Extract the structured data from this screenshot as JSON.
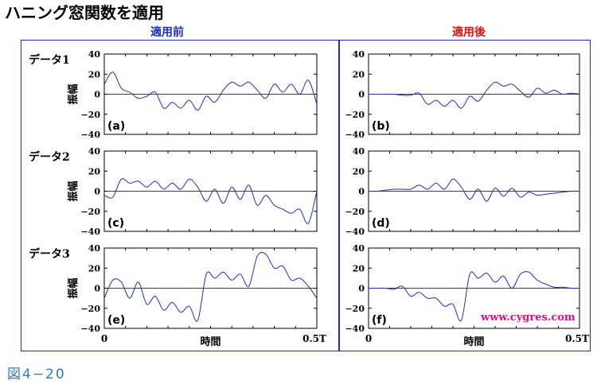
{
  "title": "ハニング窓関数を適用",
  "column_headers": {
    "before": "適用前",
    "after": "適用後"
  },
  "colors": {
    "frame": "#1f2fb5",
    "before_header": "#1f2fb5",
    "after_header": "#e01010",
    "line": "#2030b0",
    "caption": "#3a78b8",
    "watermark": "#e0117f"
  },
  "row_labels": [
    "データ1",
    "データ2",
    "データ3"
  ],
  "ylabel": "振幅",
  "xlabel": "時間",
  "x_ticks": [
    "0",
    "0.5T"
  ],
  "watermark": "www.cygres.com",
  "figure_caption": "図4−20",
  "chart_data": [
    {
      "panel": "(a)",
      "type": "line",
      "ylim": [
        -40,
        40
      ],
      "yticks": [
        -40,
        -20,
        0,
        20,
        40
      ],
      "xlim": [
        0,
        0.5
      ],
      "x": [
        0,
        0.02,
        0.04,
        0.06,
        0.08,
        0.1,
        0.12,
        0.14,
        0.16,
        0.18,
        0.2,
        0.22,
        0.24,
        0.26,
        0.28,
        0.3,
        0.32,
        0.34,
        0.36,
        0.38,
        0.4,
        0.42,
        0.44,
        0.46,
        0.48,
        0.5
      ],
      "values": [
        10,
        22,
        6,
        2,
        -4,
        -2,
        2,
        -14,
        -8,
        -14,
        -6,
        -16,
        -2,
        -8,
        4,
        12,
        8,
        12,
        4,
        -4,
        10,
        2,
        10,
        0,
        14,
        -10
      ]
    },
    {
      "panel": "(b)",
      "type": "line",
      "ylim": [
        -40,
        40
      ],
      "yticks": [
        -40,
        -20,
        0,
        20,
        40
      ],
      "xlim": [
        0,
        0.5
      ],
      "x": [
        0,
        0.02,
        0.04,
        0.06,
        0.08,
        0.1,
        0.12,
        0.14,
        0.16,
        0.18,
        0.2,
        0.22,
        0.24,
        0.26,
        0.28,
        0.3,
        0.32,
        0.34,
        0.36,
        0.38,
        0.4,
        0.42,
        0.44,
        0.46,
        0.48,
        0.5
      ],
      "values": [
        0,
        0,
        0,
        0,
        -1,
        -1,
        1,
        -10,
        -6,
        -12,
        -6,
        -14,
        -2,
        -7,
        4,
        12,
        8,
        10,
        3,
        -3,
        6,
        1,
        4,
        0,
        1,
        0
      ]
    },
    {
      "panel": "(c)",
      "type": "line",
      "ylim": [
        -40,
        40
      ],
      "yticks": [
        -40,
        -20,
        0,
        20,
        40
      ],
      "xlim": [
        0,
        0.5
      ],
      "x": [
        0,
        0.02,
        0.04,
        0.06,
        0.08,
        0.1,
        0.12,
        0.14,
        0.16,
        0.18,
        0.2,
        0.22,
        0.24,
        0.26,
        0.28,
        0.3,
        0.32,
        0.34,
        0.36,
        0.38,
        0.4,
        0.42,
        0.44,
        0.46,
        0.48,
        0.5
      ],
      "values": [
        -4,
        -6,
        12,
        8,
        10,
        4,
        10,
        2,
        8,
        2,
        12,
        4,
        -10,
        2,
        -12,
        4,
        -8,
        6,
        -14,
        -4,
        -14,
        -18,
        -22,
        -18,
        -32,
        0
      ]
    },
    {
      "panel": "(d)",
      "type": "line",
      "ylim": [
        -40,
        40
      ],
      "yticks": [
        -40,
        -20,
        0,
        20,
        40
      ],
      "xlim": [
        0,
        0.5
      ],
      "x": [
        0,
        0.02,
        0.04,
        0.06,
        0.08,
        0.1,
        0.12,
        0.14,
        0.16,
        0.18,
        0.2,
        0.22,
        0.24,
        0.26,
        0.28,
        0.3,
        0.32,
        0.34,
        0.36,
        0.38,
        0.4,
        0.42,
        0.44,
        0.46,
        0.48,
        0.5
      ],
      "values": [
        0,
        0,
        1,
        2,
        2,
        2,
        6,
        2,
        8,
        2,
        12,
        4,
        -8,
        2,
        -10,
        3,
        -5,
        3,
        -6,
        -1,
        -4,
        -3,
        -2,
        -1,
        0,
        0
      ]
    },
    {
      "panel": "(e)",
      "type": "line",
      "ylim": [
        -40,
        40
      ],
      "yticks": [
        -40,
        -20,
        0,
        20,
        40
      ],
      "xlim": [
        0,
        0.5
      ],
      "x": [
        0,
        0.02,
        0.04,
        0.06,
        0.08,
        0.1,
        0.12,
        0.14,
        0.16,
        0.18,
        0.2,
        0.22,
        0.24,
        0.26,
        0.28,
        0.3,
        0.32,
        0.34,
        0.36,
        0.38,
        0.4,
        0.42,
        0.44,
        0.46,
        0.48,
        0.5
      ],
      "values": [
        -10,
        8,
        6,
        -10,
        6,
        -16,
        -8,
        -22,
        -14,
        -24,
        -18,
        -32,
        14,
        10,
        16,
        8,
        14,
        2,
        32,
        34,
        20,
        22,
        8,
        10,
        2,
        -10
      ]
    },
    {
      "panel": "(f)",
      "type": "line",
      "ylim": [
        -40,
        40
      ],
      "yticks": [
        -40,
        -20,
        0,
        20,
        40
      ],
      "xlim": [
        0,
        0.5
      ],
      "x": [
        0,
        0.02,
        0.04,
        0.06,
        0.08,
        0.1,
        0.12,
        0.14,
        0.16,
        0.18,
        0.2,
        0.22,
        0.24,
        0.26,
        0.28,
        0.3,
        0.32,
        0.34,
        0.36,
        0.38,
        0.4,
        0.42,
        0.44,
        0.46,
        0.48,
        0.5
      ],
      "values": [
        0,
        0,
        0,
        -1,
        2,
        -8,
        -4,
        -10,
        -10,
        -18,
        -16,
        -32,
        14,
        10,
        15,
        6,
        12,
        0,
        14,
        16,
        8,
        4,
        1,
        1,
        0,
        0
      ]
    }
  ]
}
